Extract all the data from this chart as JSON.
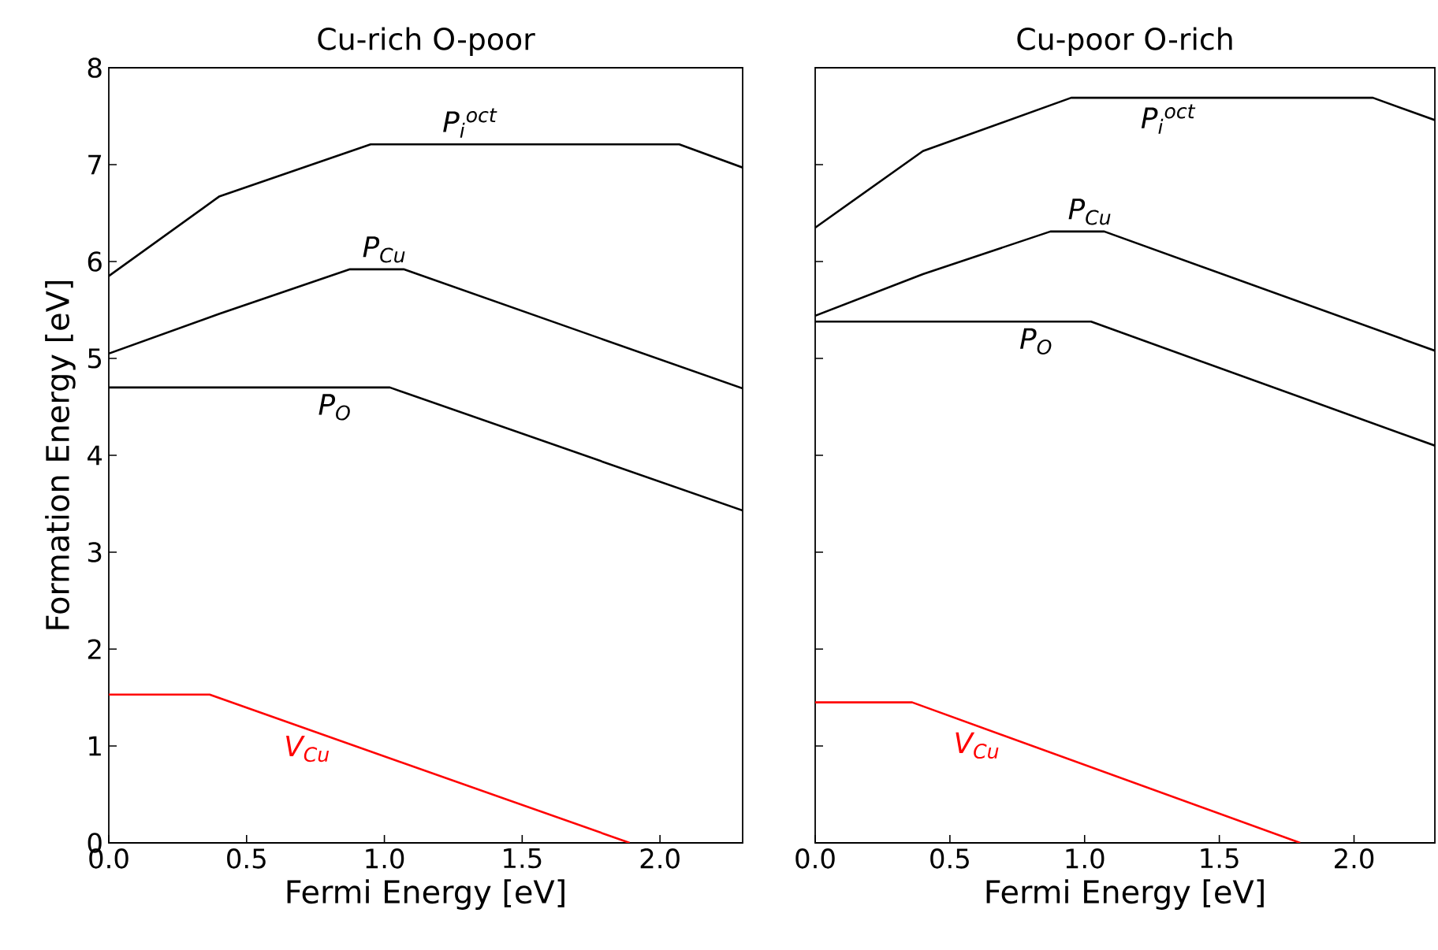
{
  "chart_data": [
    {
      "type": "line",
      "title": "Cu-rich O-poor",
      "xlabel": "Fermi Energy [eV]",
      "ylabel": "Formation Energy [eV]",
      "xlim": [
        0,
        2.3
      ],
      "ylim": [
        0,
        8
      ],
      "xticks": [
        {
          "value": 0,
          "label": "0.0"
        },
        {
          "value": 0.5,
          "label": "0.5"
        },
        {
          "value": 1,
          "label": "1.0"
        },
        {
          "value": 1.5,
          "label": "1.5"
        },
        {
          "value": 2,
          "label": "2.0"
        }
      ],
      "yticks": [
        0,
        1,
        2,
        3,
        4,
        5,
        6,
        7,
        8
      ],
      "grid": false,
      "legend": false,
      "line_style": "solid",
      "marker": "none",
      "series": [
        {
          "name": "P$_{i}$$^{oct}$",
          "color": "#000000",
          "x": [
            0,
            0.4,
            0.95,
            2.07,
            2.3
          ],
          "values": [
            5.85,
            6.67,
            7.21,
            7.21,
            6.97
          ]
        },
        {
          "name": "P$_{Cu}$",
          "color": "#000000",
          "x": [
            0,
            0.4,
            0.875,
            1.07,
            2.3
          ],
          "values": [
            5.05,
            5.46,
            5.92,
            5.92,
            4.69
          ]
        },
        {
          "name": "P$_{O}$",
          "color": "#000000",
          "x": [
            0,
            1.02,
            2.3
          ],
          "values": [
            4.7,
            4.7,
            3.43
          ]
        },
        {
          "name": "V$_{Cu}$",
          "color": "#ff0000",
          "x": [
            0,
            0.366,
            1.89
          ],
          "values": [
            1.53,
            1.53,
            0
          ]
        }
      ]
    },
    {
      "type": "line",
      "title": "Cu-poor O-rich",
      "xlabel": "Fermi Energy [eV]",
      "xlim": [
        0,
        2.3
      ],
      "ylim": [
        0,
        8
      ],
      "tick_labels": "x",
      "xticks": [
        {
          "value": 0,
          "label": "0.0"
        },
        {
          "value": 0.5,
          "label": "0.5"
        },
        {
          "value": 1,
          "label": "1.0"
        },
        {
          "value": 1.5,
          "label": "1.5"
        },
        {
          "value": 2,
          "label": "2.0"
        }
      ],
      "yticks": [
        0,
        1,
        2,
        3,
        4,
        5,
        6,
        7,
        8
      ],
      "grid": false,
      "legend": false,
      "line_style": "solid",
      "marker": "none",
      "series": [
        {
          "name": "P$_{i}$$^{oct}$",
          "color": "#000000",
          "x": [
            0,
            0.4,
            0.95,
            2.07,
            2.3
          ],
          "values": [
            6.35,
            7.14,
            7.69,
            7.69,
            7.46
          ]
        },
        {
          "name": "P$_{Cu}$",
          "color": "#000000",
          "x": [
            0,
            0.4,
            0.873,
            1.073,
            2.3
          ],
          "values": [
            5.44,
            5.87,
            6.31,
            6.31,
            5.08
          ]
        },
        {
          "name": "P$_{O}$",
          "color": "#000000",
          "x": [
            0,
            1.024,
            2.3
          ],
          "values": [
            5.38,
            5.38,
            4.1
          ]
        },
        {
          "name": "V$_{Cu}$",
          "color": "#ff0000",
          "x": [
            0,
            0.36,
            1.8
          ],
          "values": [
            1.45,
            1.45,
            0
          ]
        }
      ]
    }
  ]
}
